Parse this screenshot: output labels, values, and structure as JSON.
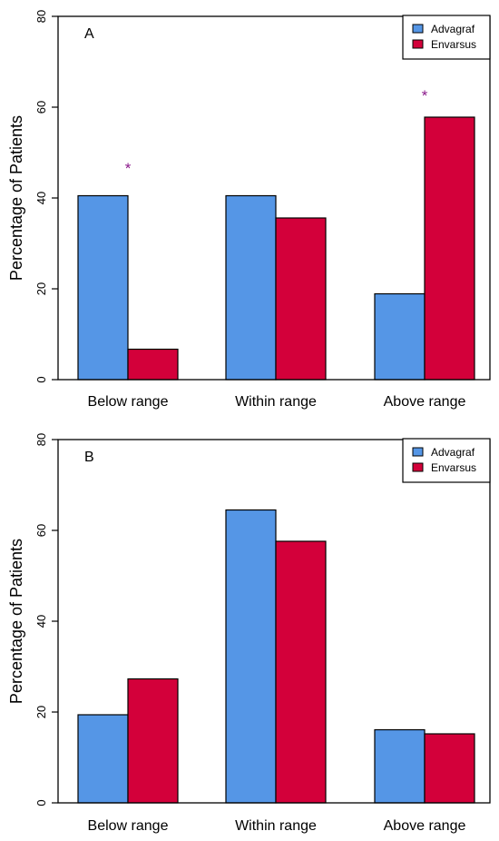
{
  "chart_data": [
    {
      "type": "bar",
      "panel_label": "A",
      "categories": [
        "Below range",
        "Within range",
        "Above range"
      ],
      "series": [
        {
          "name": "Advagraf",
          "color": "#5596e6",
          "values": [
            40.5,
            40.5,
            18.9
          ]
        },
        {
          "name": "Envarsus",
          "color": "#d3003a",
          "values": [
            6.7,
            35.6,
            57.8
          ]
        }
      ],
      "significance": [
        {
          "category_index": 0,
          "symbol": "*",
          "y": 47
        },
        {
          "category_index": 2,
          "symbol": "*",
          "y": 63
        }
      ],
      "xlabel": "",
      "ylabel": "Percentage of Patients",
      "ylim": [
        0,
        80
      ],
      "yticks": [
        0,
        20,
        40,
        60,
        80
      ],
      "legend_position": "top-right",
      "grid": false,
      "annotation_color": "#8b1a8b"
    },
    {
      "type": "bar",
      "panel_label": "B",
      "categories": [
        "Below range",
        "Within range",
        "Above range"
      ],
      "series": [
        {
          "name": "Advagraf",
          "color": "#5596e6",
          "values": [
            19.4,
            64.5,
            16.1
          ]
        },
        {
          "name": "Envarsus",
          "color": "#d3003a",
          "values": [
            27.3,
            57.6,
            15.2
          ]
        }
      ],
      "significance": [],
      "xlabel": "",
      "ylabel": "Percentage of Patients",
      "ylim": [
        0,
        80
      ],
      "yticks": [
        0,
        20,
        40,
        60,
        80
      ],
      "legend_position": "top-right",
      "grid": false,
      "annotation_color": "#8b1a8b"
    }
  ]
}
